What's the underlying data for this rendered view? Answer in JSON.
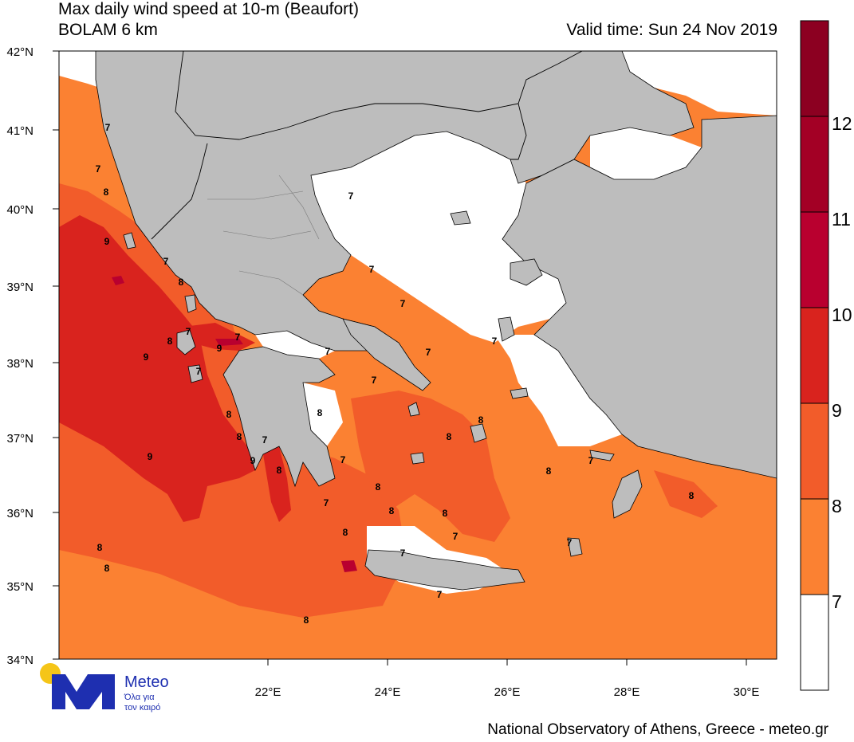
{
  "header": {
    "title_line1": "Max daily wind speed at 10-m (Beaufort)",
    "title_line2": "BOLAM 6 km",
    "valid_time": "Valid time: Sun 24 Nov 2019"
  },
  "footer": {
    "credit": "National Observatory of Athens, Greece - meteo.gr"
  },
  "logo": {
    "name": "Meteo",
    "tagline_line1": "Όλα για",
    "tagline_line2": "τον καιρό",
    "sun_color": "#f5c518",
    "brand_color": "#1e2fb0"
  },
  "axes": {
    "latitude_labels": [
      "42°N",
      "41°N",
      "40°N",
      "39°N",
      "38°N",
      "37°N",
      "36°N",
      "35°N",
      "34°N"
    ],
    "longitude_labels": [
      "22°E",
      "24°E",
      "26°E",
      "28°E",
      "30°E"
    ]
  },
  "colorbar": {
    "labels": [
      "12",
      "11",
      "10",
      "9",
      "8",
      "7"
    ],
    "colors": {
      "below_7": "#ffffff",
      "7_8": "#fb8132",
      "8_9": "#f25c2a",
      "9_10": "#d9231e",
      "10_11": "#b9002f",
      "11_12": "#a30025",
      "above_12": "#8c0021"
    }
  },
  "map_colors": {
    "land": "#bdbdbd",
    "calm_sea": "#ffffff",
    "borders": "#000000"
  },
  "contour_labels": [
    "7",
    "7",
    "8",
    "9",
    "7",
    "8",
    "7",
    "8",
    "9",
    "7",
    "9",
    "7",
    "8",
    "8",
    "7",
    "9",
    "9",
    "7",
    "7",
    "7",
    "7",
    "7",
    "8",
    "8",
    "8",
    "8",
    "7",
    "8",
    "8",
    "8",
    "7",
    "7",
    "8",
    "8",
    "7",
    "7",
    "7",
    "7",
    "8",
    "8",
    "7",
    "7",
    "8",
    "8"
  ]
}
